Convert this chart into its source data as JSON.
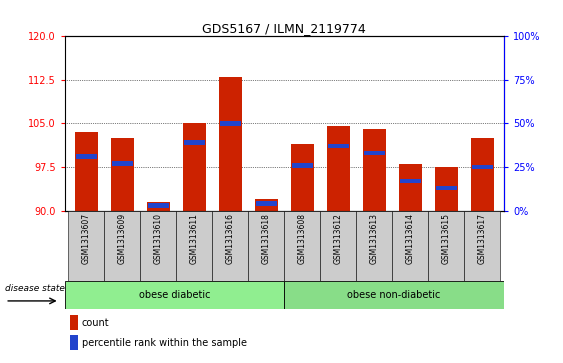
{
  "title": "GDS5167 / ILMN_2119774",
  "samples": [
    "GSM1313607",
    "GSM1313609",
    "GSM1313610",
    "GSM1313611",
    "GSM1313616",
    "GSM1313618",
    "GSM1313608",
    "GSM1313612",
    "GSM1313613",
    "GSM1313614",
    "GSM1313615",
    "GSM1313617"
  ],
  "count_values": [
    103.5,
    102.5,
    91.5,
    105.0,
    113.0,
    92.0,
    101.5,
    104.5,
    104.0,
    98.0,
    97.5,
    102.5
  ],
  "percentile_values": [
    31,
    27,
    3,
    39,
    50,
    4,
    26,
    37,
    33,
    17,
    13,
    25
  ],
  "y_min": 90,
  "y_max": 120,
  "y_ticks": [
    90,
    97.5,
    105,
    112.5,
    120
  ],
  "right_y_ticks": [
    0,
    25,
    50,
    75,
    100
  ],
  "right_y_labels": [
    "0%",
    "25%",
    "50%",
    "75%",
    "100%"
  ],
  "bar_color": "#cc2200",
  "blue_color": "#2244cc",
  "group1_label": "obese diabetic",
  "group2_label": "obese non-diabetic",
  "group1_count": 6,
  "group2_count": 6,
  "disease_state_label": "disease state",
  "legend_count": "count",
  "legend_percentile": "percentile rank within the sample",
  "background_color": "#ffffff",
  "plot_bg_color": "#ffffff",
  "group_box_color": "#90ee90",
  "strip_color": "#cccccc"
}
